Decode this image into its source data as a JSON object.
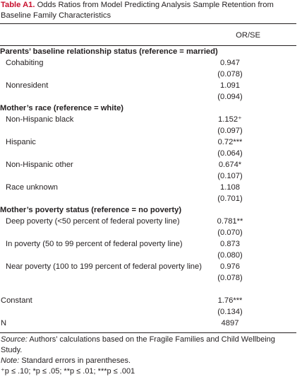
{
  "title": {
    "label": "Table A1.",
    "text": " Odds Ratios from Model Predicting Analysis Sample Retention from Baseline Family Characteristics"
  },
  "column_header": "OR/SE",
  "sections": [
    {
      "heading": "Parents’ baseline relationship status (reference = married)",
      "rows": [
        {
          "label": "Cohabiting",
          "value": "0.947",
          "se": "(0.078)"
        },
        {
          "label": "Nonresident",
          "value": "1.091",
          "se": "(0.094)"
        }
      ]
    },
    {
      "heading": "Mother’s race (reference = white)",
      "rows": [
        {
          "label": "Non-Hispanic black",
          "value": "1.152⁺",
          "se": "(0.097)"
        },
        {
          "label": "Hispanic",
          "value": "0.72***",
          "se": "(0.064)"
        },
        {
          "label": "Non-Hispanic other",
          "value": "0.674*",
          "se": "(0.107)"
        },
        {
          "label": "Race unknown",
          "value": "1.108",
          "se": "(0.701)"
        }
      ]
    },
    {
      "heading": "Mother’s poverty status (reference = no poverty)",
      "rows": [
        {
          "label": "Deep poverty (<50 percent of federal poverty line)",
          "value": "0.781**",
          "se": "(0.070)"
        },
        {
          "label": "In poverty (50 to 99 percent of federal poverty line)",
          "value": "0.873",
          "se": "(0.080)"
        },
        {
          "label": "Near poverty (100 to 199 percent of federal poverty line)",
          "value": "0.976",
          "se": "(0.078)"
        }
      ]
    }
  ],
  "constant": {
    "label": "Constant",
    "value": "1.76***",
    "se": "(0.134)"
  },
  "n": {
    "label": "N",
    "value": "4897"
  },
  "notes": {
    "source_label": "Source:",
    "source_text": " Authors’ calculations based on the Fragile Families and Child Wellbeing Study.",
    "note_label": "Note:",
    "note_text": " Standard errors in parentheses.",
    "significance": "⁺p ≤ .10; *p ≤ .05; **p ≤ .01; ***p ≤ .001"
  },
  "colors": {
    "title_accent": "#c8102e",
    "text": "#231f20"
  }
}
